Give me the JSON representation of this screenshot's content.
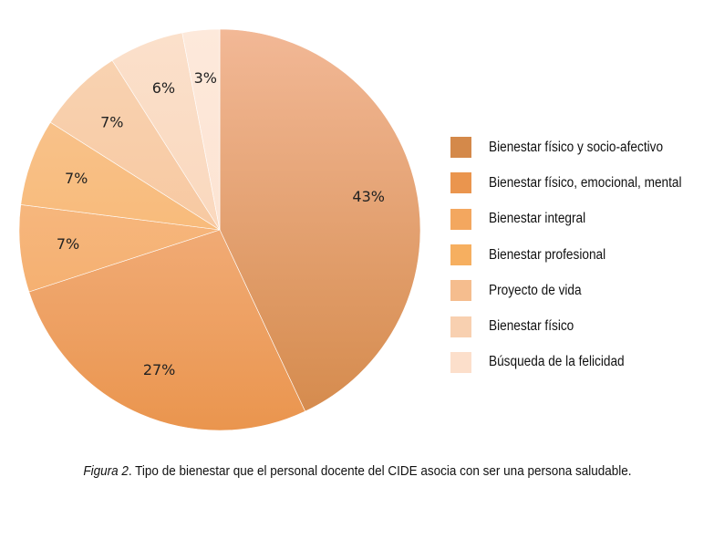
{
  "chart_data": {
    "type": "pie",
    "start_angle_deg": 0,
    "direction": "clockwise",
    "slices": [
      {
        "label": "Bienestar físico y socio-afectivo",
        "value": 43,
        "display": "43%",
        "color": "#D4894A",
        "color_light": "#F2B896"
      },
      {
        "label": "Bienestar físico, emocional, mental",
        "value": 27,
        "display": "27%",
        "color": "#EA954E",
        "color_light": "#F7C09C"
      },
      {
        "label": "Bienestar integral",
        "value": 7,
        "display": "7%",
        "color": "#F3A75F",
        "color_light": "#F8C294"
      },
      {
        "label": "Bienestar profesional",
        "value": 7,
        "display": "7%",
        "color": "#F6AF60",
        "color_light": "#F9C796"
      },
      {
        "label": "Proyecto de vida",
        "value": 7,
        "display": "7%",
        "color": "#F5BD8E",
        "color_light": "#F9D4B4"
      },
      {
        "label": "Bienestar físico",
        "value": 6,
        "display": "6%",
        "color": "#F8D0B0",
        "color_light": "#FBE0CB"
      },
      {
        "label": "Búsqueda de la felicidad",
        "value": 3,
        "display": "3%",
        "color": "#FCDFCB",
        "color_light": "#FDE9DB"
      }
    ]
  },
  "caption": {
    "prefix": "Figura 2",
    "text": ". Tipo de bienestar que el personal docente del CIDE asocia con ser una persona saludable."
  }
}
